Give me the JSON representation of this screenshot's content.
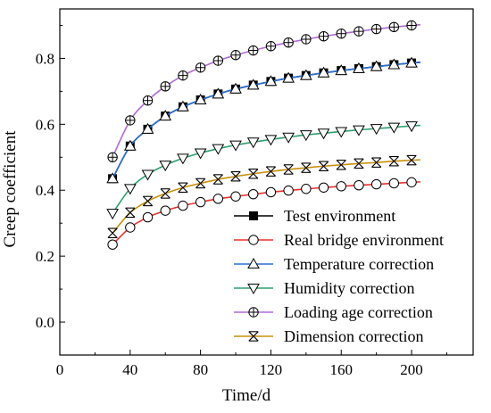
{
  "chart_data": {
    "type": "line",
    "title": "",
    "xlabel": "Time/d",
    "ylabel": "Creep coefficient",
    "xlim": [
      0,
      235
    ],
    "ylim": [
      -0.1,
      0.95
    ],
    "x_ticks": [
      0,
      40,
      80,
      120,
      160,
      200
    ],
    "y_ticks": [
      0.0,
      0.2,
      0.4,
      0.6,
      0.8
    ],
    "x_tick_labels": [
      "0",
      "40",
      "80",
      "120",
      "160",
      "200"
    ],
    "y_tick_labels": [
      "0.0",
      "0.2",
      "0.4",
      "0.6",
      "0.8"
    ],
    "grid": false,
    "legend_position": "bottom-right",
    "x": [
      30,
      40,
      50,
      60,
      70,
      80,
      90,
      100,
      110,
      120,
      130,
      140,
      150,
      160,
      170,
      180,
      190,
      200
    ],
    "series": [
      {
        "name": "Test environment",
        "color": "#000000",
        "marker": "filled-square",
        "values": [
          0.435,
          0.534,
          0.585,
          0.625,
          0.653,
          0.674,
          0.692,
          0.707,
          0.719,
          0.73,
          0.74,
          0.748,
          0.756,
          0.763,
          0.769,
          0.775,
          0.781,
          0.786
        ]
      },
      {
        "name": "Real bridge environment",
        "color": "#e8312f",
        "marker": "open-circle",
        "values": [
          0.235,
          0.287,
          0.318,
          0.338,
          0.353,
          0.364,
          0.374,
          0.381,
          0.388,
          0.394,
          0.399,
          0.404,
          0.408,
          0.412,
          0.415,
          0.418,
          0.421,
          0.424
        ]
      },
      {
        "name": "Temperature correction",
        "color": "#2a6fd6",
        "marker": "open-triangle-up",
        "values": [
          0.435,
          0.534,
          0.585,
          0.625,
          0.653,
          0.674,
          0.692,
          0.707,
          0.719,
          0.73,
          0.74,
          0.748,
          0.756,
          0.763,
          0.769,
          0.775,
          0.781,
          0.786
        ]
      },
      {
        "name": "Humidity correction",
        "color": "#2e9e6e",
        "marker": "open-triangle-down",
        "values": [
          0.33,
          0.405,
          0.448,
          0.476,
          0.497,
          0.513,
          0.526,
          0.537,
          0.546,
          0.554,
          0.561,
          0.568,
          0.573,
          0.578,
          0.583,
          0.587,
          0.591,
          0.595
        ]
      },
      {
        "name": "Loading age correction",
        "color": "#b06ad8",
        "marker": "circle-plus",
        "values": [
          0.5,
          0.612,
          0.672,
          0.715,
          0.748,
          0.772,
          0.793,
          0.81,
          0.824,
          0.837,
          0.848,
          0.858,
          0.867,
          0.875,
          0.882,
          0.889,
          0.895,
          0.9
        ]
      },
      {
        "name": "Dimension correction",
        "color": "#c8900a",
        "marker": "cross-x",
        "values": [
          0.27,
          0.332,
          0.367,
          0.39,
          0.408,
          0.421,
          0.433,
          0.442,
          0.45,
          0.457,
          0.463,
          0.468,
          0.473,
          0.477,
          0.481,
          0.484,
          0.488,
          0.491
        ]
      }
    ]
  }
}
